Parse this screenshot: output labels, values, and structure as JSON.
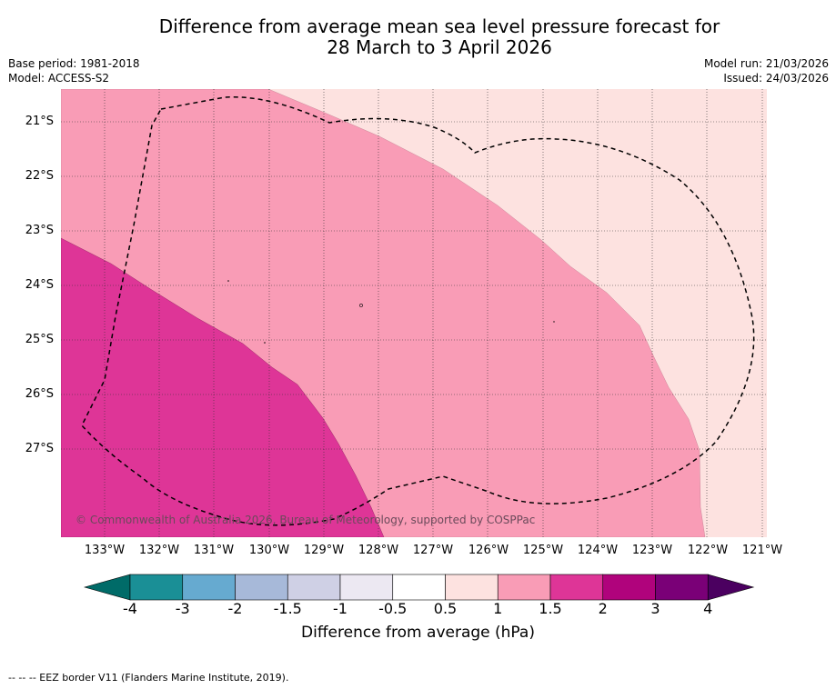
{
  "title_line1": "Difference from average mean sea level pressure forecast for",
  "title_line2": "28 March to 3 April 2026",
  "base_period": "Base period: 1981-2018",
  "model": "Model: ACCESS-S2",
  "model_run": "Model run: 21/03/2026",
  "issued": "Issued: 24/03/2026",
  "copyright": "© Commonwealth of Australia 2026, Bureau of Meteorology, supported by COSPPac",
  "eez_note": "--  --  -- EEZ border V11 (Flanders Marine Institute, 2019).",
  "colorbar": {
    "title": "Difference from average (hPa)",
    "ticks": [
      "-4",
      "-3",
      "-2",
      "-1.5",
      "-1",
      "-0.5",
      "0.5",
      "1",
      "1.5",
      "2",
      "3",
      "4"
    ],
    "colors": [
      "#1a8f96",
      "#66aad0",
      "#a7b9d9",
      "#cfd0e5",
      "#ece8f2",
      "#ffffff",
      "#fde2e0",
      "#f99cb6",
      "#de3597",
      "#b0037c",
      "#7a0077"
    ],
    "under_color": "#006b68",
    "over_color": "#4b0060"
  },
  "chart_data": {
    "type": "filled-contour-map",
    "variable": "MSLP difference from average (hPa)",
    "lon_range": [
      -133.8,
      -120.8
    ],
    "lat_range": [
      -28.9,
      -20.6
    ],
    "lon_ticks": [
      "133°W",
      "132°W",
      "131°W",
      "130°W",
      "129°W",
      "128°W",
      "127°W",
      "126°W",
      "125°W",
      "124°W",
      "123°W",
      "122°W",
      "121°W"
    ],
    "lat_ticks": [
      "21°S",
      "22°S",
      "23°S",
      "24°S",
      "25°S",
      "26°S",
      "27°S"
    ],
    "regions": [
      {
        "range": "0.5 to 1",
        "area": "northeast and east of map"
      },
      {
        "range": "1 to 1.5",
        "area": "central band"
      },
      {
        "range": "1.5 to 2",
        "area": "southwest corner"
      }
    ]
  }
}
